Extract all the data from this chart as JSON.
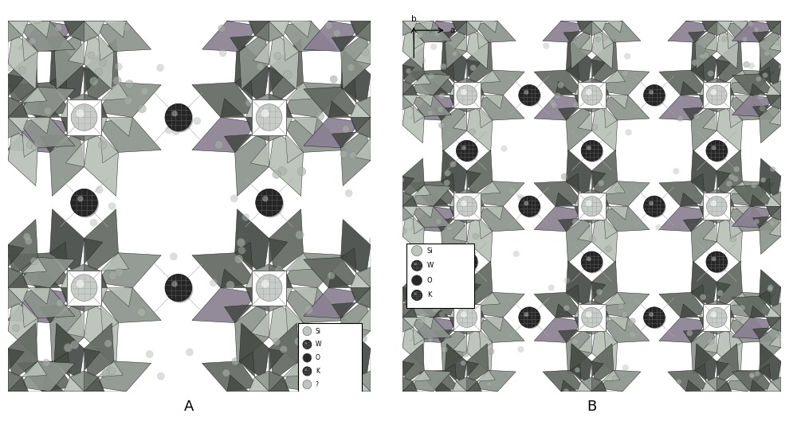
{
  "title_A": "A",
  "title_B": "B",
  "background_color": "#ffffff",
  "legend_items_A": [
    "Si",
    "W",
    "O",
    "K",
    "?"
  ],
  "legend_items_B": [
    "Si",
    "W",
    "O",
    "K"
  ],
  "axis_label_b": "b",
  "axis_label_a": "a",
  "col_dark": "#4a4e4a",
  "col_mid": "#6a706a",
  "col_light": "#9aa09a",
  "col_vlight": "#c0c8c0",
  "col_pink": "#908898",
  "col_edge": "#222222"
}
